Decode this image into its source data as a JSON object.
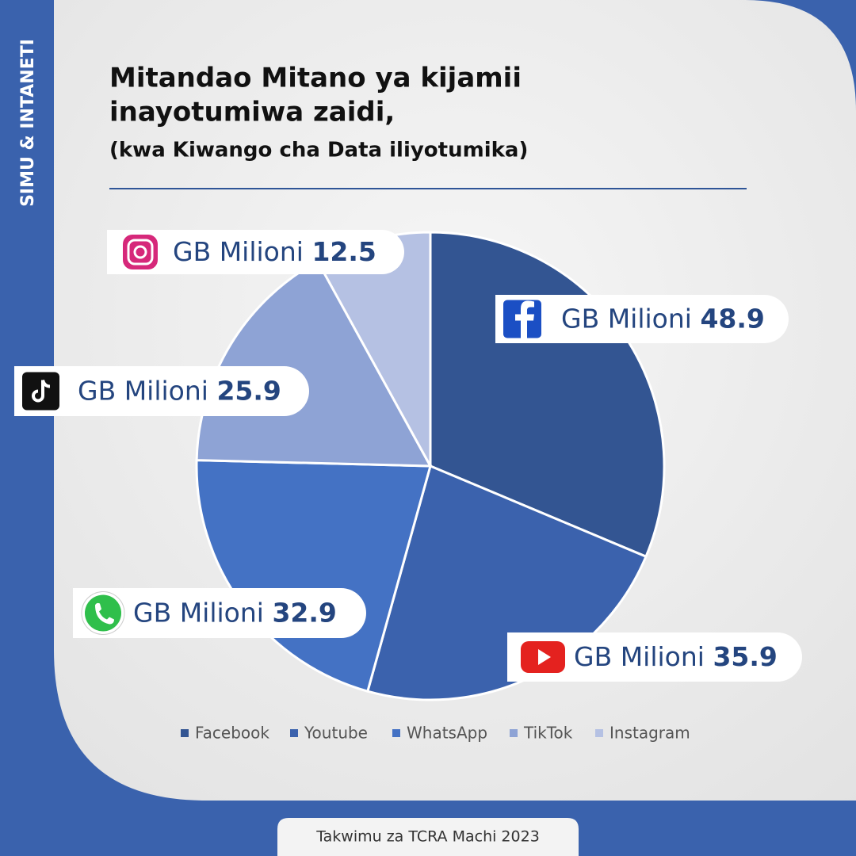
{
  "side_label": "SIMU & INTANETI",
  "chart_data": {
    "type": "pie",
    "title": [
      "Mitandao Mitano ya kijamii",
      "inayotumiwa zaidi,"
    ],
    "subtitle": "(kwa Kiwango cha Data iliyotumika)",
    "categories": [
      "Facebook",
      "Youtube",
      "WhatsApp",
      "TikTok",
      "Instagram"
    ],
    "values": [
      48.9,
      35.9,
      32.9,
      25.9,
      12.5
    ],
    "label_prefix": "GB Milioni",
    "colors": [
      "#335592",
      "#3b62ad",
      "#4472c4",
      "#8ea3d5",
      "#b5c1e3"
    ],
    "legend": "bottom"
  },
  "source": "Takwimu za TCRA Machi 2023"
}
